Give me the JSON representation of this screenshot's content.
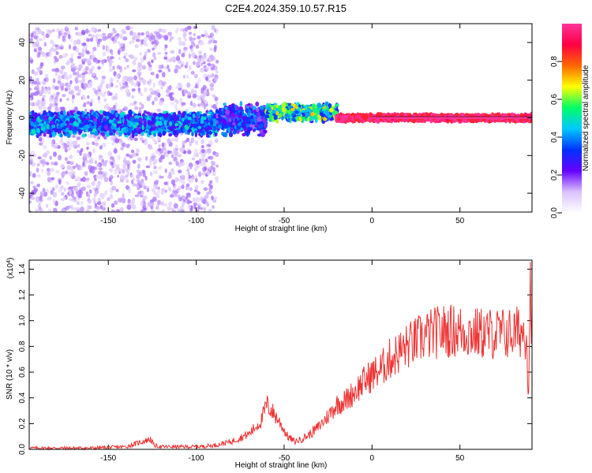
{
  "page_title": "C2E4.2024.359.10.57.R15",
  "colors": {
    "snr_line": "#ee3333",
    "frame": "#000000",
    "background": "#ffffff",
    "colorbar_stops": [
      "#ffffff",
      "#d9c2ff",
      "#6600ff",
      "#0033ff",
      "#00c8ff",
      "#00ff66",
      "#ffff00",
      "#ff6600",
      "#ff0044",
      "#ff3399"
    ]
  },
  "chart_data": [
    {
      "type": "heatmap",
      "title": "C2E4.2024.359.10.57.R15",
      "xlabel": "Height of straight line (km)",
      "ylabel": "Frequency (Hz)",
      "xlim": [
        -195,
        91
      ],
      "ylim": [
        -50,
        50
      ],
      "x_ticks": [
        "-150",
        "-100",
        "-50",
        "0",
        "50"
      ],
      "x_tick_values": [
        -150,
        -100,
        -50,
        0,
        50
      ],
      "y_ticks": [
        "-40",
        "-20",
        "0",
        "20",
        "40"
      ],
      "y_tick_values": [
        -40,
        -20,
        0,
        20,
        40
      ],
      "colorbar": {
        "label": "Normalized spectral amplitude",
        "range": [
          0,
          1
        ],
        "ticks": [
          "0.0",
          "0.2",
          "0.4",
          "0.6",
          "0.8"
        ],
        "tick_values": [
          0,
          0.2,
          0.4,
          0.6,
          0.8
        ]
      },
      "bands": [
        {
          "x_from": -195,
          "x_to": -88,
          "freq_center": -2,
          "freq_spread": 50,
          "amplitude": 0.12,
          "note": "broadband noise"
        },
        {
          "x_from": -195,
          "x_to": -88,
          "freq_center": -3,
          "freq_spread": 7,
          "amplitude": 0.35
        },
        {
          "x_from": -88,
          "x_to": -60,
          "freq_center": -1,
          "freq_spread": 9,
          "amplitude": 0.3
        },
        {
          "x_from": -60,
          "x_to": -20,
          "freq_center": 3,
          "freq_spread": 5,
          "amplitude": 0.5
        },
        {
          "x_from": -20,
          "x_to": 91,
          "freq_center": 0,
          "freq_spread": 2,
          "amplitude": 0.95
        }
      ],
      "ridge_line": {
        "x_from": 0,
        "x_to": 91,
        "freq": 0
      }
    },
    {
      "type": "line",
      "xlabel": "Height of straight line (km)",
      "ylabel": "SNR (10 * v/v)",
      "y_multiplier": "(x10",
      "y_multiplier_exp": "4",
      "y_multiplier_close": ")",
      "xlim": [
        -195,
        91
      ],
      "ylim": [
        0,
        1.47
      ],
      "x_ticks": [
        "-150",
        "-100",
        "-50",
        "0",
        "50"
      ],
      "x_tick_values": [
        -150,
        -100,
        -50,
        0,
        50
      ],
      "y_ticks": [
        "0.0",
        "0.2",
        "0.4",
        "0.6",
        "0.8",
        "1.0",
        "1.2",
        "1.4"
      ],
      "y_tick_values": [
        0,
        0.2,
        0.4,
        0.6,
        0.8,
        1.0,
        1.2,
        1.4
      ],
      "series": [
        {
          "x": [
            -195,
            -180,
            -160,
            -140,
            -126,
            -124,
            -120,
            -100,
            -90,
            -80,
            -70,
            -63,
            -60,
            -57,
            -52,
            -48,
            -44,
            -40,
            -35,
            -30,
            -25,
            -20,
            -15,
            -10,
            -5,
            0,
            5,
            10,
            20,
            30,
            40,
            50,
            60,
            70,
            80,
            85,
            88,
            89,
            90,
            91
          ],
          "y": [
            0.01,
            0.01,
            0.01,
            0.02,
            0.08,
            0.03,
            0.02,
            0.02,
            0.03,
            0.06,
            0.12,
            0.22,
            0.35,
            0.3,
            0.2,
            0.1,
            0.06,
            0.08,
            0.12,
            0.18,
            0.26,
            0.35,
            0.38,
            0.45,
            0.52,
            0.58,
            0.62,
            0.7,
            0.8,
            0.88,
            0.92,
            0.92,
            0.9,
            0.9,
            0.9,
            0.92,
            0.9,
            0.4,
            1.3,
            0.95
          ]
        }
      ]
    }
  ]
}
